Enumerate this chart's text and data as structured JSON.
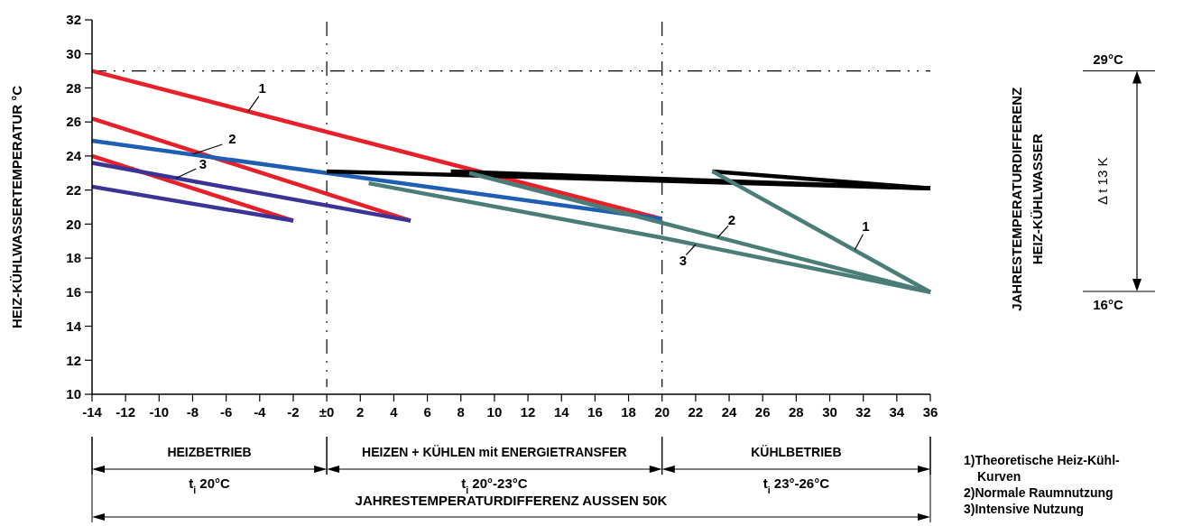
{
  "chart_data": {
    "type": "line",
    "ylabel": "HEIZ-KÜHLWASSERTEMPERATUR °C",
    "xlim": [
      -14,
      36
    ],
    "ylim": [
      10,
      32
    ],
    "xticks": [
      -14,
      -12,
      -10,
      -8,
      -6,
      -4,
      -2,
      {
        "value": 0,
        "label": "±0"
      },
      2,
      4,
      6,
      8,
      10,
      12,
      14,
      16,
      18,
      20,
      22,
      24,
      26,
      28,
      30,
      32,
      34,
      36
    ],
    "yticks": [
      10,
      12,
      14,
      16,
      18,
      20,
      22,
      24,
      26,
      28,
      30,
      32
    ],
    "marker": "none",
    "line_style": "solid",
    "series": [
      {
        "color": "#e8202a",
        "x": [
          -14,
          20
        ],
        "values": [
          29,
          20.3
        ]
      },
      {
        "color": "#e8202a",
        "x": [
          -14,
          5
        ],
        "values": [
          26.2,
          20.2
        ]
      },
      {
        "color": "#e8202a",
        "x": [
          -14,
          -2
        ],
        "values": [
          24,
          20.2
        ]
      },
      {
        "color": "#3a3496",
        "x": [
          -14,
          5
        ],
        "values": [
          23.6,
          20.2
        ]
      },
      {
        "color": "#3a3496",
        "x": [
          -14,
          -2
        ],
        "values": [
          22.2,
          20.2
        ]
      },
      {
        "color": "#1e5fb4",
        "x": [
          -14,
          0,
          20
        ],
        "values": [
          24.9,
          23,
          20.3
        ]
      },
      {
        "color": "#000000",
        "x": [
          0,
          36
        ],
        "values": [
          23.1,
          22.1
        ]
      },
      {
        "color": "#000000",
        "x": [
          7.4,
          36
        ],
        "values": [
          23.1,
          22.1
        ]
      },
      {
        "color": "#000000",
        "x": [
          23,
          36
        ],
        "values": [
          23.1,
          22.1
        ]
      },
      {
        "color": "#4a7d78",
        "x": [
          23,
          36
        ],
        "values": [
          23.1,
          16
        ]
      },
      {
        "color": "#4a7d78",
        "x": [
          8.5,
          36
        ],
        "values": [
          23,
          16
        ]
      },
      {
        "color": "#4a7d78",
        "x": [
          2.5,
          20,
          36
        ],
        "values": [
          22.4,
          19.2,
          16
        ]
      }
    ],
    "ref_lines": [
      {
        "axis": "y",
        "value": 29,
        "label": "29°C",
        "line_style": "dashed"
      },
      {
        "axis": "x",
        "value": 0,
        "line_style": "dashed"
      },
      {
        "axis": "x",
        "value": 20,
        "line_style": "dashed"
      }
    ],
    "annotations": [
      {
        "text": "1",
        "x": -4.7,
        "y": 26.6
      },
      {
        "text": "2",
        "x": -8,
        "y": 24.1
      },
      {
        "text": "3",
        "x": -9,
        "y": 22.7
      },
      {
        "text": "2",
        "x": 23.3,
        "y": 19.2
      },
      {
        "text": "3",
        "x": 22,
        "y": 18.8
      },
      {
        "text": "1",
        "x": 31.5,
        "y": 18.5
      },
      "16°C",
      "Δ t 13 K",
      "JAHRESTEMPERATURDIFFERENZ",
      "HEIZ-KÜHLWASSER",
      "HEIZBETRIEB",
      "HEIZEN + KÜHLEN mit ENERGIETRANSFER",
      "KÜHLBETRIEB",
      "JAHRESTEMPERATURDIFFERENZ AUSSEN 50K",
      "t$_{i}$ 20°C",
      "t$_{i}$ 20°-23°C",
      "t$_{i}$ 23°-26°C",
      "1)Theoretische Heiz-Kühl-",
      "Kurven",
      "2)Normale Raumnutzung",
      "3)Intensive Nutzung"
    ]
  }
}
